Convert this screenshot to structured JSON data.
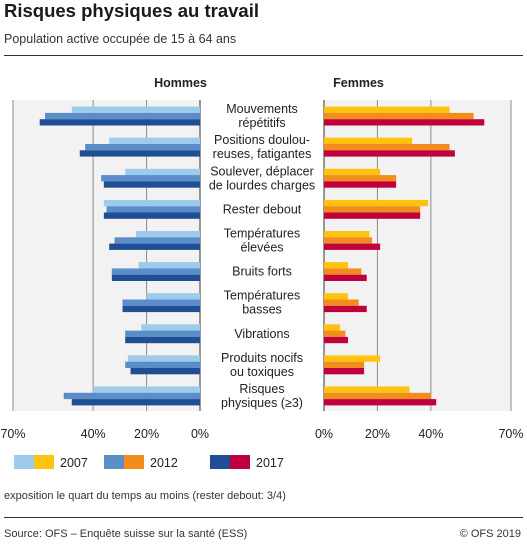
{
  "header": {
    "title": "Risques physiques au travail",
    "subtitle": "Population active occupée de 15 à 64 ans"
  },
  "footer": {
    "note": "exposition le quart du temps au moins (rester debout: 3/4)",
    "source": "Source: OFS – Enquête suisse sur la santé (ESS)",
    "copyright": "© OFS 2019"
  },
  "colors": {
    "hommes": [
      "#9ccbeb",
      "#5b8dc9",
      "#1f4e95"
    ],
    "femmes": [
      "#ffc20e",
      "#f28c1c",
      "#c0003c"
    ],
    "panel_bg": "#f2f2f2",
    "grid": "#8c8c8c"
  },
  "chart_data": {
    "type": "bar",
    "orientation": "horizontal-butterfly",
    "panels": [
      "Hommes",
      "Femmes"
    ],
    "unit": "%",
    "xlim": [
      0,
      70
    ],
    "ticks": {
      "hommes": [
        "70%",
        "40%",
        "20%",
        "0%"
      ],
      "femmes": [
        "0%",
        "20%",
        "40%",
        "70%"
      ]
    },
    "tick_values": [
      0,
      20,
      40,
      70
    ],
    "categories": [
      [
        "Mouvements",
        "répétitifs"
      ],
      [
        "Positions doulou-",
        "reuses, fatigantes"
      ],
      [
        "Soulever, déplacer",
        "de lourdes charges"
      ],
      [
        "Rester debout"
      ],
      [
        "Températures",
        "élevées"
      ],
      [
        "Bruits forts"
      ],
      [
        "Températures",
        "basses"
      ],
      [
        "Vibrations"
      ],
      [
        "Produits nocifs",
        "ou toxiques"
      ],
      [
        "Risques",
        "physiques (≥3)"
      ]
    ],
    "years": [
      "2007",
      "2012",
      "2017"
    ],
    "series": [
      {
        "name": "Hommes 2007",
        "values": [
          48,
          34,
          28,
          36,
          24,
          23,
          20,
          22,
          27,
          40
        ]
      },
      {
        "name": "Hommes 2012",
        "values": [
          58,
          43,
          37,
          35,
          32,
          33,
          29,
          28,
          28,
          51
        ]
      },
      {
        "name": "Hommes 2017",
        "values": [
          60,
          45,
          36,
          36,
          34,
          33,
          29,
          28,
          26,
          48
        ]
      },
      {
        "name": "Femmes 2007",
        "values": [
          47,
          33,
          21,
          39,
          17,
          9,
          9,
          6,
          21,
          32
        ]
      },
      {
        "name": "Femmes 2012",
        "values": [
          56,
          47,
          27,
          36,
          18,
          14,
          13,
          8,
          15,
          40
        ]
      },
      {
        "name": "Femmes 2017",
        "values": [
          60,
          49,
          27,
          36,
          21,
          16,
          16,
          9,
          15,
          42
        ]
      }
    ],
    "grid": true,
    "legend": "bottom"
  }
}
